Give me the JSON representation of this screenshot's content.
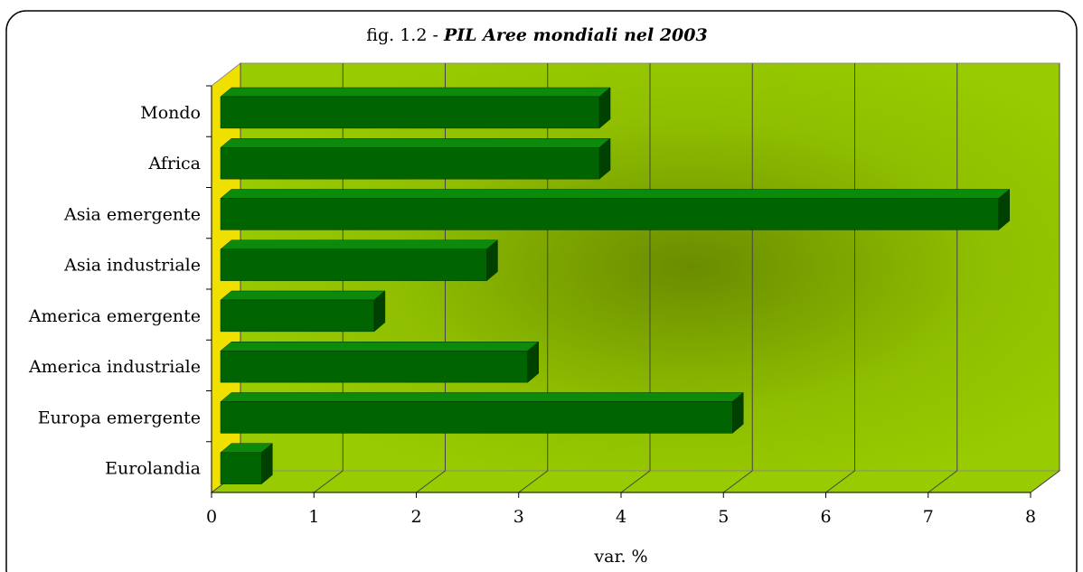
{
  "chart_data": {
    "type": "bar3d",
    "orientation": "horizontal",
    "title": [
      "fig. 1.2 -",
      "PIL Aree mondiali nel 2003"
    ],
    "categories": [
      "Mondo",
      "Africa",
      "Asia emergente",
      "Asia industriale",
      "America emergente",
      "America industriale",
      "Europa emergente",
      "Eurolandia"
    ],
    "values": [
      3.7,
      3.7,
      7.6,
      2.6,
      1.5,
      3.0,
      5.0,
      0.4
    ],
    "color": "#006400",
    "xlabel": "var. %",
    "xlim": [
      0,
      8
    ],
    "xticks": [
      0,
      1,
      2,
      3,
      4,
      5,
      6,
      7,
      8
    ],
    "grid": true
  }
}
